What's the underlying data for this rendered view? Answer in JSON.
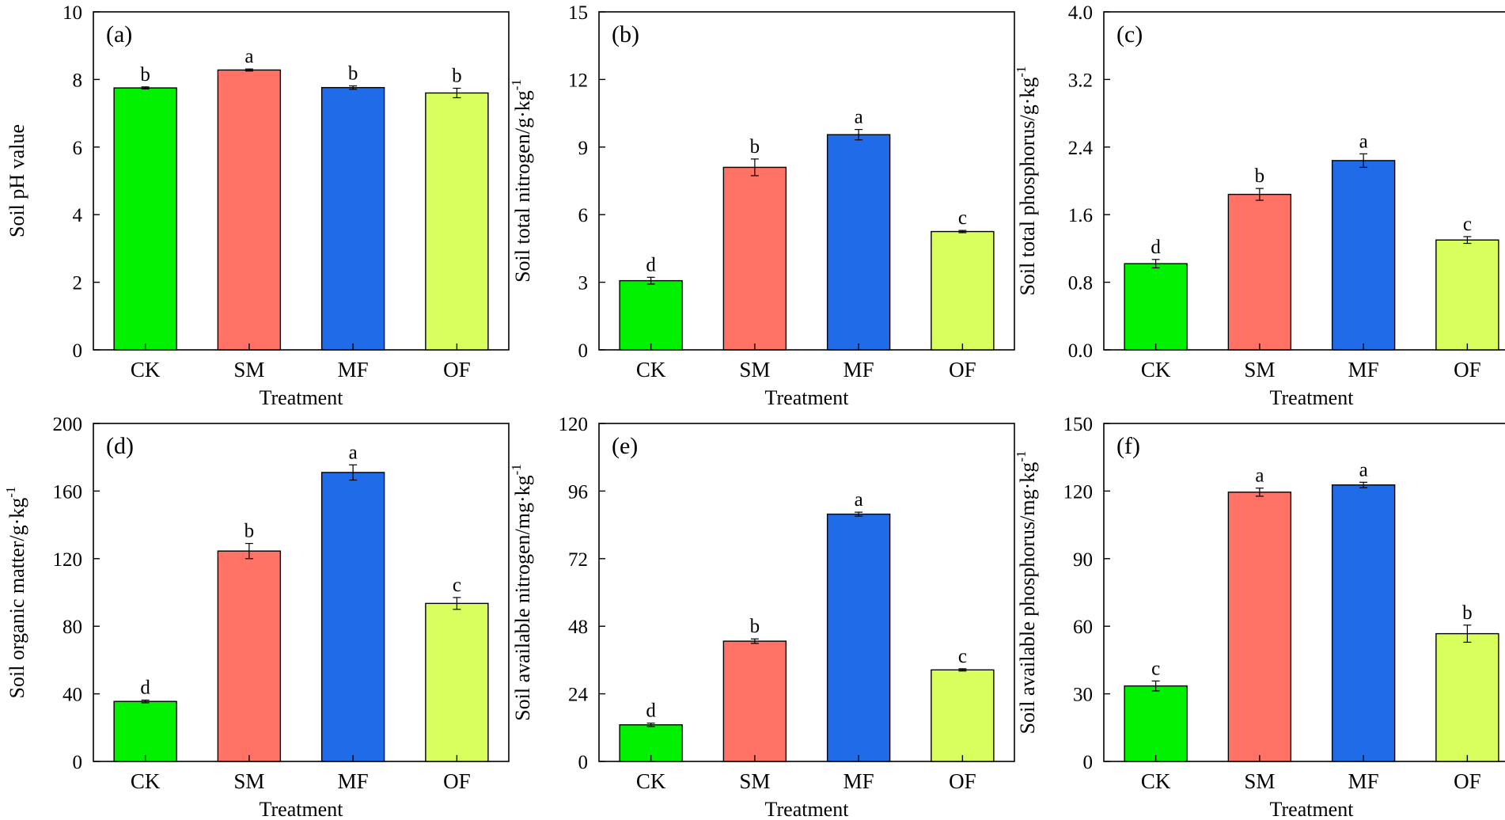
{
  "figure": {
    "xlabel": "Treatment",
    "categories": [
      "CK",
      "SM",
      "MF",
      "OF"
    ],
    "bar_colors": [
      "#00f000",
      "#ff7265",
      "#1f6be8",
      "#d9ff5e"
    ]
  },
  "chart_data": [
    {
      "type": "bar",
      "panel": "(a)",
      "title": "",
      "xlabel": "Treatment",
      "ylabel": "Soil pH value",
      "ylabel_sup": "",
      "categories": [
        "CK",
        "SM",
        "MF",
        "OF"
      ],
      "values": [
        7.75,
        8.28,
        7.76,
        7.6
      ],
      "errors": [
        0.03,
        0.03,
        0.05,
        0.14
      ],
      "significance": [
        "b",
        "a",
        "b",
        "b"
      ],
      "ylim": [
        0,
        10
      ],
      "yticks": [
        0,
        2,
        4,
        6,
        8,
        10
      ],
      "ytick_labels": [
        "0",
        "2",
        "4",
        "6",
        "8",
        "10"
      ]
    },
    {
      "type": "bar",
      "panel": "(b)",
      "title": "",
      "xlabel": "Treatment",
      "ylabel": "Soil total nitrogen/g·kg",
      "ylabel_sup": "-1",
      "categories": [
        "CK",
        "SM",
        "MF",
        "OF"
      ],
      "values": [
        3.07,
        8.1,
        9.55,
        5.25
      ],
      "errors": [
        0.15,
        0.37,
        0.23,
        0.05
      ],
      "significance": [
        "d",
        "b",
        "a",
        "c"
      ],
      "ylim": [
        0,
        15
      ],
      "yticks": [
        0,
        3,
        6,
        9,
        12,
        15
      ],
      "ytick_labels": [
        "0",
        "3",
        "6",
        "9",
        "12",
        "15"
      ]
    },
    {
      "type": "bar",
      "panel": "(c)",
      "title": "",
      "xlabel": "Treatment",
      "ylabel": "Soil total phosphorus/g·kg",
      "ylabel_sup": "-1",
      "categories": [
        "CK",
        "SM",
        "MF",
        "OF"
      ],
      "values": [
        1.02,
        1.84,
        2.24,
        1.3
      ],
      "errors": [
        0.05,
        0.07,
        0.08,
        0.04
      ],
      "significance": [
        "d",
        "b",
        "a",
        "c"
      ],
      "ylim": [
        0,
        4.0
      ],
      "yticks": [
        0,
        0.8,
        1.6,
        2.4,
        3.2,
        4.0
      ],
      "ytick_labels": [
        "0.0",
        "0.8",
        "1.6",
        "2.4",
        "3.2",
        "4.0"
      ]
    },
    {
      "type": "bar",
      "panel": "(d)",
      "title": "",
      "xlabel": "Treatment",
      "ylabel": "Soil organic matter/g·kg",
      "ylabel_sup": "-1",
      "categories": [
        "CK",
        "SM",
        "MF",
        "OF"
      ],
      "values": [
        35.5,
        124.5,
        171,
        93.5
      ],
      "errors": [
        0.8,
        4.5,
        4.5,
        3.5
      ],
      "significance": [
        "d",
        "b",
        "a",
        "c"
      ],
      "ylim": [
        0,
        200
      ],
      "yticks": [
        0,
        40,
        80,
        120,
        160,
        200
      ],
      "ytick_labels": [
        "0",
        "40",
        "80",
        "120",
        "160",
        "200"
      ]
    },
    {
      "type": "bar",
      "panel": "(e)",
      "title": "",
      "xlabel": "Treatment",
      "ylabel": "Soil available nitrogen/mg·kg",
      "ylabel_sup": "-1",
      "categories": [
        "CK",
        "SM",
        "MF",
        "OF"
      ],
      "values": [
        13,
        42.7,
        87.8,
        32.5
      ],
      "errors": [
        0.6,
        0.8,
        0.7,
        0.4
      ],
      "significance": [
        "d",
        "b",
        "a",
        "c"
      ],
      "ylim": [
        0,
        120
      ],
      "yticks": [
        0,
        24,
        48,
        72,
        96,
        120
      ],
      "ytick_labels": [
        "0",
        "24",
        "48",
        "72",
        "96",
        "120"
      ]
    },
    {
      "type": "bar",
      "panel": "(f)",
      "title": "",
      "xlabel": "Treatment",
      "ylabel": "Soil available phosphorus/mg·kg",
      "ylabel_sup": "-1",
      "categories": [
        "CK",
        "SM",
        "MF",
        "OF"
      ],
      "values": [
        33.5,
        119.5,
        122.7,
        56.7
      ],
      "errors": [
        2.2,
        1.8,
        1.2,
        3.8
      ],
      "significance": [
        "c",
        "a",
        "a",
        "b"
      ],
      "ylim": [
        0,
        150
      ],
      "yticks": [
        0,
        30,
        60,
        90,
        120,
        150
      ],
      "ytick_labels": [
        "0",
        "30",
        "60",
        "90",
        "120",
        "150"
      ]
    }
  ]
}
